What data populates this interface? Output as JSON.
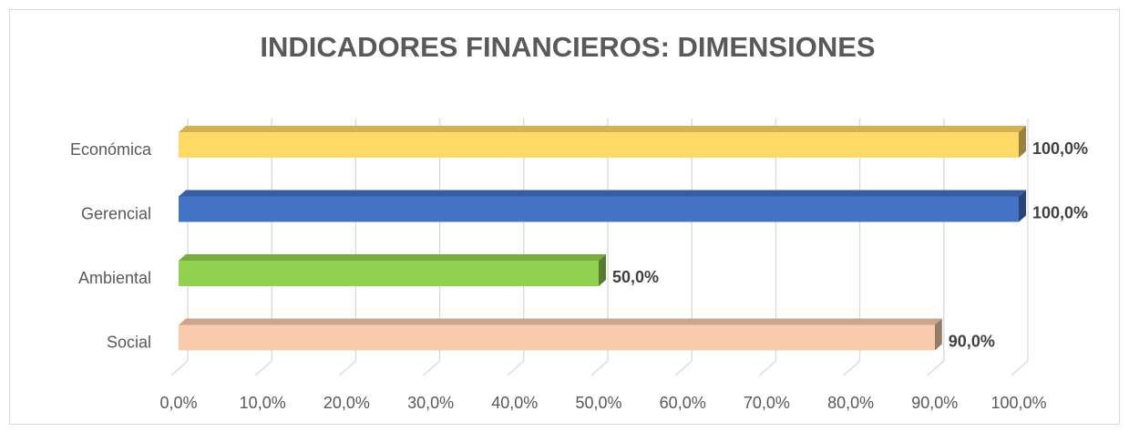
{
  "chart_data": {
    "type": "bar",
    "orientation": "horizontal",
    "title": "INDICADORES FINANCIEROS: DIMENSIONES",
    "categories": [
      "Económica",
      "Gerencial",
      "Ambiental",
      "Social"
    ],
    "values": [
      100,
      100,
      50,
      90
    ],
    "value_labels": [
      "100,0%",
      "100,0%",
      "50,0%",
      "90,0%"
    ],
    "colors": [
      "#ffd966",
      "#4472c4",
      "#92d050",
      "#f8cbad"
    ],
    "xlim": [
      0,
      100
    ],
    "xticks": [
      {
        "value": 0,
        "label": "0,0%"
      },
      {
        "value": 10,
        "label": "10,0%"
      },
      {
        "value": 20,
        "label": "20,0%"
      },
      {
        "value": 30,
        "label": "30,0%"
      },
      {
        "value": 40,
        "label": "40,0%"
      },
      {
        "value": 50,
        "label": "50,0%"
      },
      {
        "value": 60,
        "label": "60,0%"
      },
      {
        "value": 70,
        "label": "70,0%"
      },
      {
        "value": 80,
        "label": "80,0%"
      },
      {
        "value": 90,
        "label": "90,0%"
      },
      {
        "value": 100,
        "label": "100,0%"
      }
    ],
    "grid": true
  }
}
